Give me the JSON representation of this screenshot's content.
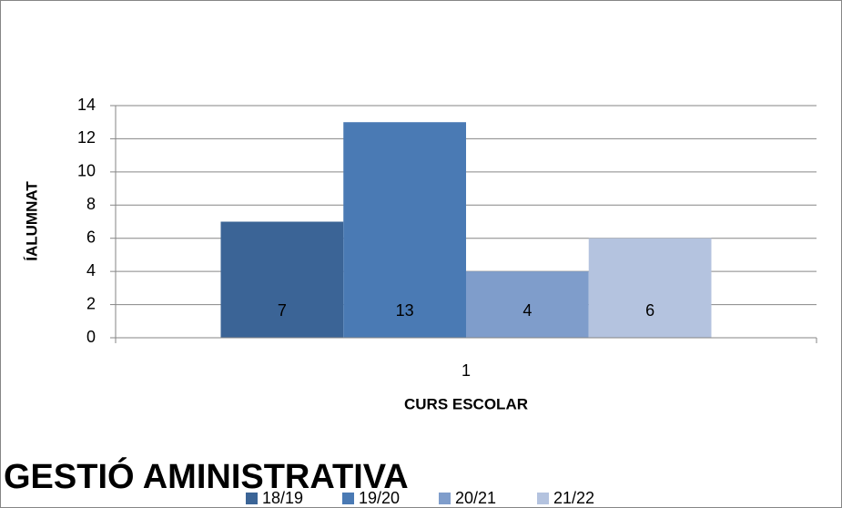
{
  "chart_data": {
    "type": "bar",
    "title": "GESTIÓ AMINISTRATIVA",
    "y_label": "ÍALUMNAT",
    "x_label": "CURS ESCOLAR",
    "categories": [
      "1"
    ],
    "series": [
      {
        "name": "18/19",
        "color": "#3b6496",
        "values": [
          7
        ]
      },
      {
        "name": "19/20",
        "color": "#4a7ab4",
        "values": [
          13
        ]
      },
      {
        "name": "20/21",
        "color": "#7f9dcb",
        "values": [
          4
        ]
      },
      {
        "name": "21/22",
        "color": "#b4c3df",
        "values": [
          6
        ]
      }
    ],
    "ylim": [
      0,
      14
    ],
    "yticks": [
      0,
      2,
      4,
      6,
      8,
      10,
      12,
      14
    ],
    "grid": true,
    "legend": "bottom"
  }
}
